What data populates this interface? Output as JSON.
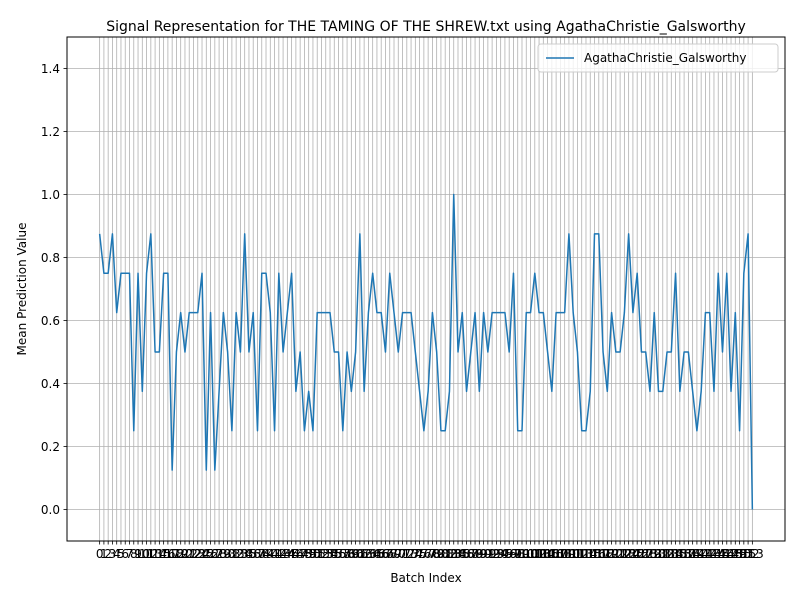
{
  "chart_data": {
    "type": "line",
    "title": "Signal Representation for THE TAMING OF THE SHREW.txt using AgathaChristie_Galsworthy",
    "xlabel": "Batch Index",
    "ylabel": "Mean Prediction Value",
    "xlim": [
      -7.65,
      160.65
    ],
    "ylim": [
      -0.1,
      1.5
    ],
    "y_ticks": [
      "0.0",
      "0.2",
      "0.4",
      "0.6",
      "0.8",
      "1.0",
      "1.2",
      "1.4"
    ],
    "y_tick_values": [
      0.0,
      0.2,
      0.4,
      0.6,
      0.8,
      1.0,
      1.2,
      1.4
    ],
    "grid": true,
    "legend_position": "upper-right",
    "line_color": "#1f77b4",
    "series": [
      {
        "name": "AgathaChristie_Galsworthy",
        "values": [
          0.875,
          0.75,
          0.75,
          0.875,
          0.625,
          0.75,
          0.75,
          0.75,
          0.25,
          0.75,
          0.375,
          0.75,
          0.875,
          0.5,
          0.5,
          0.75,
          0.75,
          0.125,
          0.5,
          0.625,
          0.5,
          0.625,
          0.625,
          0.625,
          0.75,
          0.125,
          0.625,
          0.125,
          0.375,
          0.625,
          0.5,
          0.25,
          0.625,
          0.5,
          0.875,
          0.5,
          0.625,
          0.25,
          0.75,
          0.75,
          0.625,
          0.25,
          0.75,
          0.5,
          0.625,
          0.75,
          0.375,
          0.5,
          0.25,
          0.375,
          0.25,
          0.625,
          0.625,
          0.625,
          0.625,
          0.5,
          0.5,
          0.25,
          0.5,
          0.375,
          0.5,
          0.875,
          0.375,
          0.625,
          0.75,
          0.625,
          0.625,
          0.5,
          0.75,
          0.625,
          0.5,
          0.625,
          0.625,
          0.625,
          0.5,
          0.375,
          0.25,
          0.375,
          0.625,
          0.5,
          0.25,
          0.25,
          0.375,
          1.0,
          0.5,
          0.625,
          0.375,
          0.5,
          0.625,
          0.375,
          0.625,
          0.5,
          0.625,
          0.625,
          0.625,
          0.625,
          0.5,
          0.75,
          0.25,
          0.25,
          0.625,
          0.625,
          0.75,
          0.625,
          0.625,
          0.5,
          0.375,
          0.625,
          0.625,
          0.625,
          0.875,
          0.625,
          0.5,
          0.25,
          0.25,
          0.375,
          0.875,
          0.875,
          0.5,
          0.375,
          0.625,
          0.5,
          0.5,
          0.625,
          0.875,
          0.625,
          0.75,
          0.5,
          0.5,
          0.375,
          0.625,
          0.375,
          0.375,
          0.5,
          0.5,
          0.75,
          0.375,
          0.5,
          0.5,
          0.375,
          0.25,
          0.375,
          0.625,
          0.625,
          0.375,
          0.75,
          0.5,
          0.75,
          0.375,
          0.625,
          0.25,
          0.75,
          0.875,
          0.0
        ]
      }
    ]
  }
}
